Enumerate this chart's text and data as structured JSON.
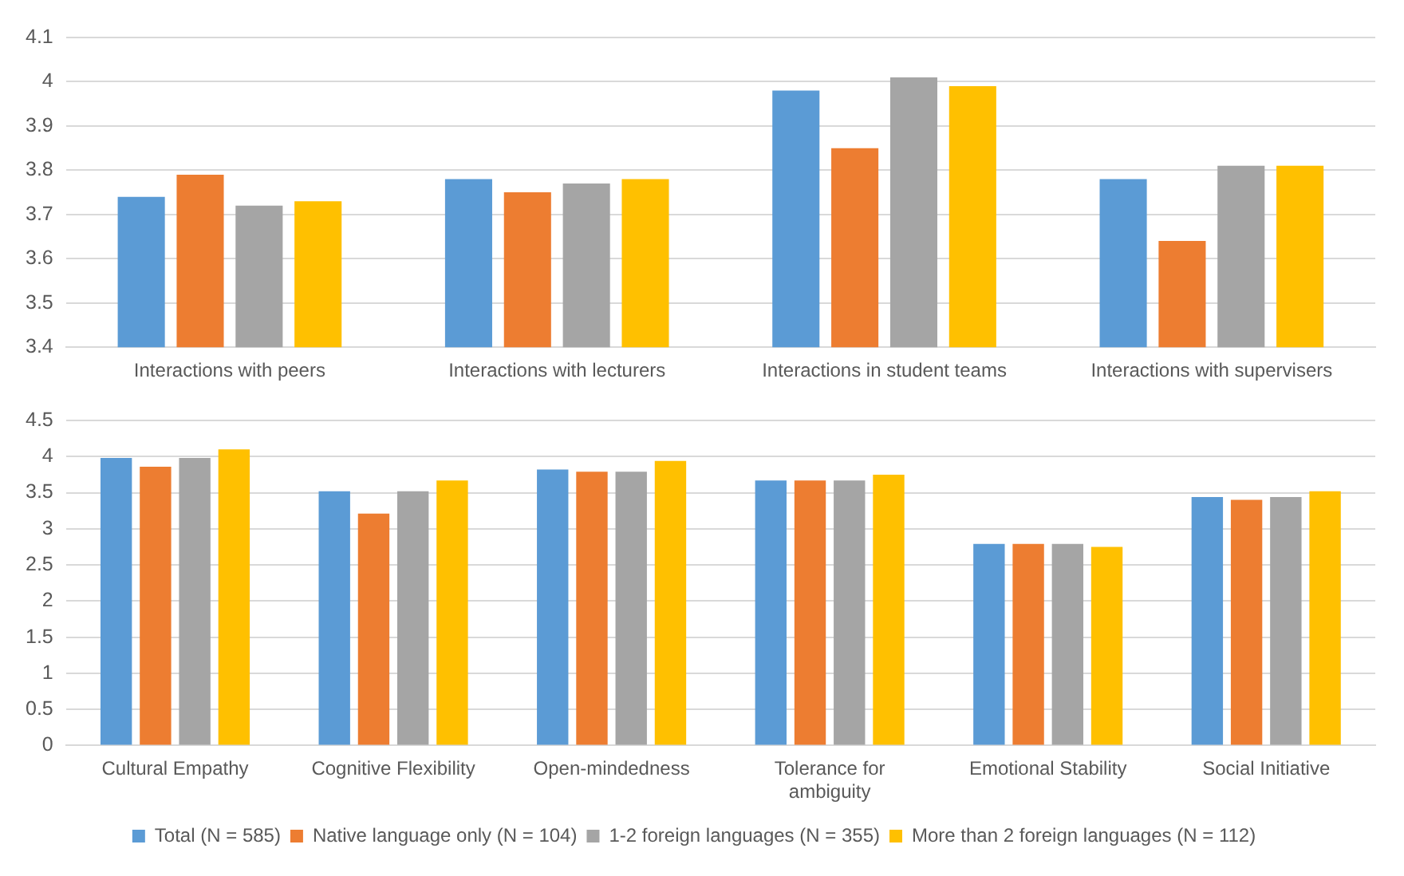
{
  "chart_data": [
    {
      "type": "bar",
      "categories": [
        "Interactions with peers",
        "Interactions with lecturers",
        "Interactions in student teams",
        "Interactions with supervisers"
      ],
      "series": [
        {
          "color": "#5b9bd5",
          "values": [
            3.74,
            3.78,
            3.98,
            3.78
          ]
        },
        {
          "color": "#ed7d31",
          "values": [
            3.79,
            3.75,
            3.85,
            3.64
          ]
        },
        {
          "color": "#a5a5a5",
          "values": [
            3.72,
            3.77,
            4.01,
            3.81
          ]
        },
        {
          "color": "#ffc000",
          "values": [
            3.73,
            3.78,
            3.99,
            3.81
          ]
        }
      ],
      "ylim": [
        3.4,
        4.1
      ],
      "yticks": [
        3.4,
        3.5,
        3.6,
        3.7,
        3.8,
        3.9,
        4,
        4.1
      ],
      "grid": "y",
      "legend": false
    },
    {
      "type": "bar",
      "categories": [
        "Cultural Empathy",
        "Cognitive Flexibility",
        "Open-mindedness",
        "Tolerance for ambiguity",
        "Emotional Stability",
        "Social Initiative"
      ],
      "series": [
        {
          "name": "Total (N = 585)",
          "color": "#5b9bd5",
          "values": [
            3.98,
            3.52,
            3.82,
            3.67,
            2.79,
            3.44
          ]
        },
        {
          "name": "Native language only (N = 104)",
          "color": "#ed7d31",
          "values": [
            3.86,
            3.21,
            3.79,
            3.67,
            2.79,
            3.4
          ]
        },
        {
          "name": "1-2 foreign languages (N = 355)",
          "color": "#a5a5a5",
          "values": [
            3.98,
            3.52,
            3.79,
            3.67,
            2.79,
            3.44
          ]
        },
        {
          "name": "More than 2 foreign languages (N = 112)",
          "color": "#ffc000",
          "values": [
            4.1,
            3.67,
            3.94,
            3.75,
            2.75,
            3.52
          ]
        }
      ],
      "ylim": [
        0,
        4.5
      ],
      "yticks": [
        0,
        0.5,
        1,
        1.5,
        2,
        2.5,
        3,
        3.5,
        4,
        4.5
      ],
      "grid": "y",
      "legend": "bottom"
    }
  ]
}
